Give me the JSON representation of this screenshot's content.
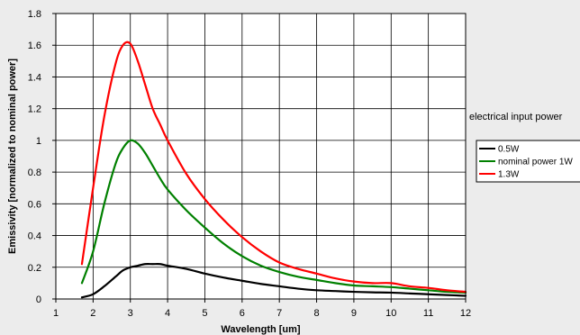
{
  "chart_data": {
    "type": "line",
    "title": "",
    "xlabel": "Wavelength [um]",
    "ylabel": "Emissivity [normalized to nominal power]",
    "xlim": [
      1,
      12
    ],
    "ylim": [
      0,
      1.8
    ],
    "xticks": [
      1,
      2,
      3,
      4,
      5,
      6,
      7,
      8,
      9,
      10,
      11,
      12
    ],
    "yticks": [
      0,
      0.2,
      0.4,
      0.6,
      0.8,
      1,
      1.2,
      1.4,
      1.6,
      1.8
    ],
    "ytick_labels": [
      "0",
      "0.2",
      "0.4",
      "0.6",
      "0.8",
      "1",
      "1.2",
      "1.4",
      "1.6",
      "1.8"
    ],
    "grid": true,
    "legend_title": "electrical input power",
    "legend_position": "right",
    "x": [
      1.7,
      2.0,
      2.3,
      2.6,
      2.8,
      3.0,
      3.2,
      3.4,
      3.6,
      3.8,
      4.0,
      4.5,
      5.0,
      5.5,
      6.0,
      6.5,
      7.0,
      7.5,
      8.0,
      8.5,
      9.0,
      9.5,
      10.0,
      10.5,
      11.0,
      11.5,
      12.0
    ],
    "series": [
      {
        "name": "0.5W",
        "color": "#000000",
        "values": [
          0.01,
          0.03,
          0.08,
          0.14,
          0.18,
          0.2,
          0.21,
          0.22,
          0.22,
          0.22,
          0.21,
          0.19,
          0.16,
          0.135,
          0.115,
          0.095,
          0.08,
          0.065,
          0.055,
          0.05,
          0.045,
          0.042,
          0.04,
          0.035,
          0.03,
          0.025,
          0.02
        ]
      },
      {
        "name": "nominal power 1W",
        "color": "#008000",
        "values": [
          0.1,
          0.3,
          0.6,
          0.85,
          0.95,
          1.0,
          0.98,
          0.92,
          0.84,
          0.76,
          0.69,
          0.56,
          0.45,
          0.35,
          0.27,
          0.21,
          0.17,
          0.14,
          0.12,
          0.1,
          0.085,
          0.08,
          0.075,
          0.065,
          0.055,
          0.045,
          0.04
        ]
      },
      {
        "name": "1.3W",
        "color": "#ff0000",
        "values": [
          0.22,
          0.7,
          1.15,
          1.48,
          1.6,
          1.61,
          1.5,
          1.35,
          1.2,
          1.1,
          1.0,
          0.79,
          0.63,
          0.5,
          0.39,
          0.3,
          0.23,
          0.19,
          0.16,
          0.13,
          0.11,
          0.1,
          0.1,
          0.08,
          0.07,
          0.055,
          0.045
        ]
      }
    ]
  }
}
